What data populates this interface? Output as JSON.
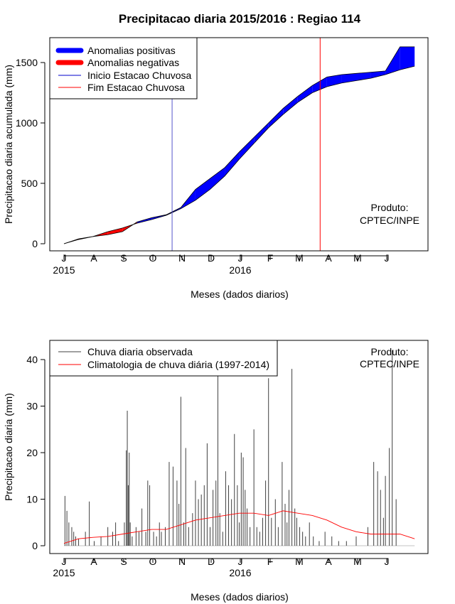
{
  "chart_data": [
    {
      "type": "area",
      "title": "Precipitacao diaria 2015/2016 : Regiao 114",
      "xlabel": "Meses (dados diarios)",
      "ylabel": "Precipitacao diaria acumulada (mm)",
      "ylim": [
        0,
        1650
      ],
      "yticks": [
        "0",
        "500",
        "1000",
        "1500"
      ],
      "ytick_values": [
        0,
        500,
        1000,
        1500
      ],
      "month_labels": [
        "J",
        "A",
        "S",
        "O",
        "N",
        "D",
        "J",
        "F",
        "M",
        "A",
        "M",
        "J"
      ],
      "year_labels": [
        "2015",
        "2016"
      ],
      "legend": [
        {
          "label": "Anomalias positivas",
          "color": "#0000ff"
        },
        {
          "label": "Anomalias negativas",
          "color": "#ff0000"
        },
        {
          "label": "Inicio Estacao Chuvosa",
          "color": "#0000cc"
        },
        {
          "label": "Fim Estacao Chuvosa",
          "color": "#ff0000"
        }
      ],
      "product_label": [
        "Produto:",
        "CPTEC/INPE"
      ],
      "rainy_season_start_day": 111,
      "rainy_season_end_day": 263,
      "observed_cumulative": {
        "day": [
          0,
          15,
          30,
          45,
          60,
          75,
          90,
          105,
          120,
          135,
          150,
          165,
          180,
          195,
          210,
          225,
          240,
          255,
          270,
          285,
          300,
          315,
          330,
          345,
          360
        ],
        "value": [
          0,
          35,
          60,
          75,
          100,
          180,
          215,
          240,
          300,
          450,
          540,
          630,
          760,
          880,
          1000,
          1120,
          1220,
          1310,
          1380,
          1400,
          1410,
          1420,
          1430,
          1630,
          1630
        ]
      },
      "climatology_cumulative": {
        "day": [
          0,
          15,
          30,
          45,
          60,
          75,
          90,
          105,
          120,
          135,
          150,
          165,
          180,
          195,
          210,
          225,
          240,
          255,
          270,
          285,
          300,
          315,
          330,
          345,
          360
        ],
        "value": [
          0,
          40,
          60,
          100,
          130,
          170,
          200,
          235,
          290,
          360,
          450,
          560,
          700,
          830,
          960,
          1070,
          1170,
          1250,
          1300,
          1330,
          1350,
          1370,
          1400,
          1440,
          1470
        ]
      }
    },
    {
      "type": "bar",
      "xlabel": "Meses (dados diarios)",
      "ylabel": "Precipitacao diaria (mm)",
      "ylim": [
        0,
        42
      ],
      "yticks": [
        "0",
        "10",
        "20",
        "30",
        "40"
      ],
      "ytick_values": [
        0,
        10,
        20,
        30,
        40
      ],
      "month_labels": [
        "J",
        "A",
        "S",
        "O",
        "N",
        "D",
        "J",
        "F",
        "M",
        "A",
        "M",
        "J"
      ],
      "year_labels": [
        "2015",
        "2016"
      ],
      "legend": [
        {
          "label": "Chuva diaria observada",
          "color": "#404040"
        },
        {
          "label": "Climatologia de chuva diária (1997-2014)",
          "color": "#ff0000"
        }
      ],
      "product_label": [
        "Produto:",
        "CPTEC/INPE"
      ],
      "observed_daily": {
        "day": [
          1,
          3,
          5,
          8,
          10,
          12,
          15,
          22,
          26,
          31,
          38,
          45,
          50,
          53,
          56,
          62,
          64,
          65,
          66,
          67,
          68,
          70,
          74,
          77,
          80,
          84,
          86,
          88,
          92,
          95,
          98,
          100,
          104,
          108,
          112,
          116,
          118,
          120,
          123,
          125,
          128,
          132,
          135,
          138,
          141,
          144,
          147,
          150,
          153,
          156,
          158,
          160,
          163,
          166,
          169,
          172,
          175,
          178,
          180,
          182,
          184,
          186,
          188,
          191,
          195,
          198,
          201,
          204,
          207,
          210,
          213,
          217,
          220,
          224,
          227,
          229,
          231,
          234,
          237,
          239,
          242,
          245,
          248,
          252,
          256,
          262,
          268,
          275,
          282,
          290,
          300,
          312,
          318,
          322,
          325,
          328,
          330,
          334,
          337,
          341
        ],
        "value": [
          10.7,
          7.5,
          5,
          4,
          3,
          2,
          1.5,
          3,
          9.5,
          1,
          2,
          4,
          3,
          5,
          1,
          5,
          20.5,
          29,
          13,
          20,
          5,
          2,
          4,
          3,
          8,
          3,
          14,
          13,
          3,
          2,
          5,
          3,
          4,
          18,
          17,
          14,
          9,
          32,
          5,
          21,
          4,
          7,
          14,
          10,
          11,
          13,
          22,
          4,
          12,
          14,
          37,
          7,
          3,
          16,
          13,
          10,
          24,
          13,
          5,
          20,
          19,
          12,
          8,
          4,
          25,
          4,
          3,
          6,
          14,
          36,
          6,
          10,
          4,
          18,
          9,
          5,
          12,
          38,
          8,
          6,
          4,
          3,
          2,
          5,
          2,
          1,
          3,
          2,
          1,
          1,
          2,
          4,
          18,
          16,
          12,
          6,
          15,
          21,
          42,
          10
        ]
      },
      "climatology_daily": {
        "day": [
          0,
          15,
          30,
          45,
          60,
          75,
          90,
          105,
          120,
          135,
          150,
          165,
          180,
          195,
          210,
          225,
          240,
          255,
          270,
          285,
          300,
          315,
          330,
          345,
          360
        ],
        "value": [
          0.5,
          1.5,
          1.8,
          2.0,
          2.5,
          3.0,
          3.5,
          3.5,
          4.5,
          5.5,
          6.0,
          6.5,
          7.0,
          7.0,
          6.5,
          7.5,
          7.0,
          6.5,
          5.5,
          4.0,
          3.0,
          2.5,
          2.5,
          2.5,
          1.5
        ]
      }
    }
  ]
}
